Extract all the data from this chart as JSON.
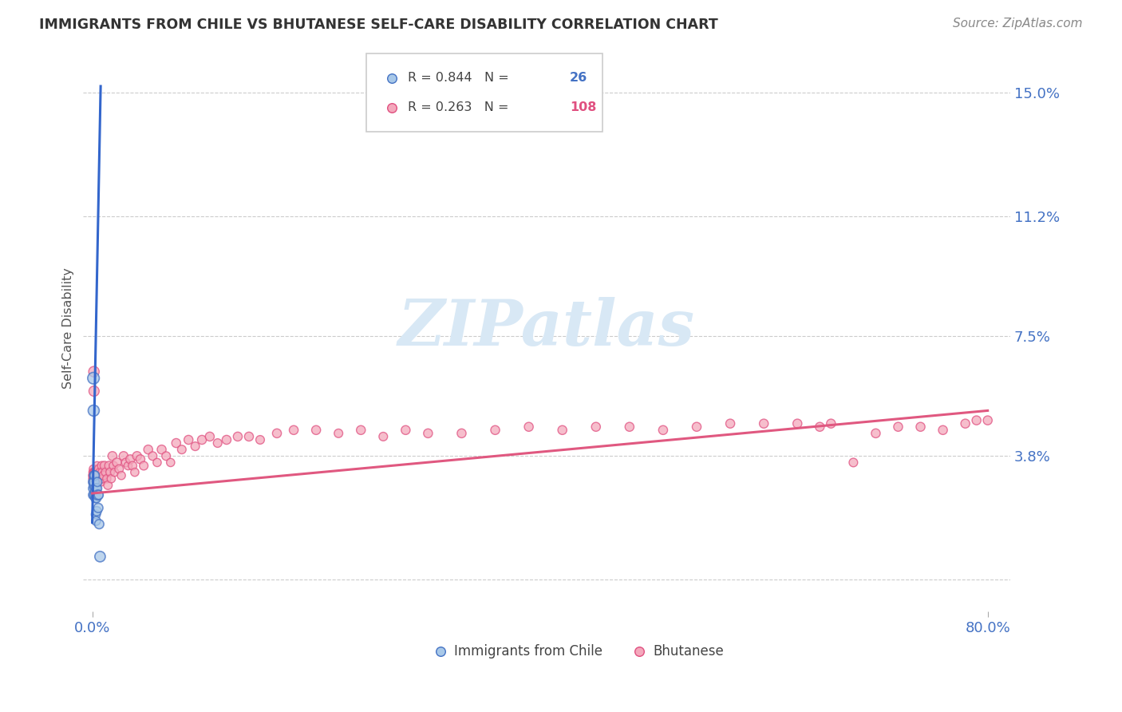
{
  "title": "IMMIGRANTS FROM CHILE VS BHUTANESE SELF-CARE DISABILITY CORRELATION CHART",
  "source": "Source: ZipAtlas.com",
  "ylabel": "Self-Care Disability",
  "legend_label_blue": "Immigrants from Chile",
  "legend_label_pink": "Bhutanese",
  "blue_R": 0.844,
  "blue_N": 26,
  "pink_R": 0.263,
  "pink_N": 108,
  "xlim": [
    -0.008,
    0.82
  ],
  "ylim": [
    -0.01,
    0.165
  ],
  "ytick_vals": [
    0.0,
    0.038,
    0.075,
    0.112,
    0.15
  ],
  "ytick_labels": [
    "",
    "3.8%",
    "7.5%",
    "11.2%",
    "15.0%"
  ],
  "xtick_vals": [
    0.0,
    0.8
  ],
  "xtick_labels": [
    "0.0%",
    "80.0%"
  ],
  "blue_face": "#a8c8e8",
  "blue_edge": "#4472c4",
  "pink_face": "#f4a8bc",
  "pink_edge": "#e05080",
  "blue_line": "#3366cc",
  "pink_line": "#e05880",
  "axis_label_color": "#4472c4",
  "title_color": "#333333",
  "source_color": "#888888",
  "ylabel_color": "#555555",
  "grid_color": "#cccccc",
  "watermark_color": "#d8e8f5",
  "legend_n_color_blue": "#4472c4",
  "legend_n_color_pink": "#e05080",
  "blue_x": [
    0.0005,
    0.0008,
    0.001,
    0.0011,
    0.0013,
    0.0015,
    0.0016,
    0.0018,
    0.002,
    0.0022,
    0.0024,
    0.0026,
    0.0028,
    0.003,
    0.0032,
    0.0034,
    0.0036,
    0.0038,
    0.004,
    0.0043,
    0.0046,
    0.005,
    0.0054,
    0.0058,
    0.0062,
    0.007
  ],
  "blue_y": [
    0.028,
    0.026,
    0.03,
    0.062,
    0.052,
    0.029,
    0.032,
    0.03,
    0.026,
    0.032,
    0.028,
    0.027,
    0.025,
    0.026,
    0.02,
    0.018,
    0.028,
    0.025,
    0.021,
    0.028,
    0.03,
    0.026,
    0.022,
    0.026,
    0.017,
    0.007
  ],
  "blue_sizes": [
    60,
    70,
    80,
    110,
    100,
    70,
    70,
    80,
    80,
    70,
    70,
    65,
    65,
    70,
    65,
    65,
    70,
    65,
    70,
    70,
    65,
    80,
    70,
    65,
    70,
    90
  ],
  "pink_x": [
    0.0005,
    0.0006,
    0.0007,
    0.0008,
    0.0009,
    0.001,
    0.0011,
    0.0012,
    0.0013,
    0.0014,
    0.0015,
    0.0016,
    0.0017,
    0.0018,
    0.0019,
    0.002,
    0.0022,
    0.0024,
    0.0026,
    0.0028,
    0.003,
    0.0032,
    0.0034,
    0.0036,
    0.0038,
    0.004,
    0.0043,
    0.0046,
    0.005,
    0.0054,
    0.0058,
    0.0062,
    0.0066,
    0.007,
    0.0075,
    0.008,
    0.0085,
    0.009,
    0.0095,
    0.01,
    0.011,
    0.012,
    0.013,
    0.014,
    0.015,
    0.016,
    0.017,
    0.018,
    0.019,
    0.02,
    0.022,
    0.024,
    0.026,
    0.028,
    0.03,
    0.032,
    0.034,
    0.036,
    0.038,
    0.04,
    0.043,
    0.046,
    0.05,
    0.054,
    0.058,
    0.062,
    0.066,
    0.07,
    0.075,
    0.08,
    0.086,
    0.092,
    0.098,
    0.105,
    0.112,
    0.12,
    0.13,
    0.14,
    0.15,
    0.165,
    0.18,
    0.2,
    0.22,
    0.24,
    0.26,
    0.28,
    0.3,
    0.33,
    0.36,
    0.39,
    0.42,
    0.45,
    0.48,
    0.51,
    0.54,
    0.57,
    0.6,
    0.63,
    0.65,
    0.66,
    0.68,
    0.7,
    0.72,
    0.74,
    0.76,
    0.78,
    0.79,
    0.8
  ],
  "pink_y": [
    0.032,
    0.031,
    0.03,
    0.033,
    0.032,
    0.034,
    0.031,
    0.032,
    0.031,
    0.033,
    0.064,
    0.058,
    0.031,
    0.032,
    0.033,
    0.03,
    0.031,
    0.032,
    0.033,
    0.03,
    0.031,
    0.032,
    0.033,
    0.031,
    0.03,
    0.033,
    0.035,
    0.032,
    0.031,
    0.03,
    0.034,
    0.032,
    0.031,
    0.033,
    0.031,
    0.03,
    0.035,
    0.033,
    0.031,
    0.032,
    0.035,
    0.033,
    0.031,
    0.029,
    0.035,
    0.033,
    0.031,
    0.038,
    0.035,
    0.033,
    0.036,
    0.034,
    0.032,
    0.038,
    0.036,
    0.035,
    0.037,
    0.035,
    0.033,
    0.038,
    0.037,
    0.035,
    0.04,
    0.038,
    0.036,
    0.04,
    0.038,
    0.036,
    0.042,
    0.04,
    0.043,
    0.041,
    0.043,
    0.044,
    0.042,
    0.043,
    0.044,
    0.044,
    0.043,
    0.045,
    0.046,
    0.046,
    0.045,
    0.046,
    0.044,
    0.046,
    0.045,
    0.045,
    0.046,
    0.047,
    0.046,
    0.047,
    0.047,
    0.046,
    0.047,
    0.048,
    0.048,
    0.048,
    0.047,
    0.048,
    0.036,
    0.045,
    0.047,
    0.047,
    0.046,
    0.048,
    0.049,
    0.049
  ],
  "pink_sizes": [
    60,
    60,
    55,
    60,
    60,
    55,
    60,
    60,
    55,
    60,
    90,
    85,
    60,
    60,
    55,
    60,
    60,
    55,
    60,
    60,
    55,
    60,
    60,
    55,
    60,
    60,
    55,
    60,
    60,
    55,
    60,
    60,
    55,
    60,
    60,
    55,
    60,
    60,
    55,
    60,
    65,
    60,
    55,
    60,
    65,
    60,
    55,
    65,
    60,
    55,
    65,
    60,
    55,
    65,
    60,
    55,
    65,
    60,
    55,
    65,
    65,
    60,
    65,
    60,
    55,
    65,
    60,
    55,
    65,
    60,
    65,
    60,
    65,
    65,
    60,
    65,
    65,
    65,
    60,
    65,
    65,
    65,
    60,
    65,
    60,
    65,
    65,
    65,
    65,
    65,
    65,
    65,
    65,
    65,
    65,
    65,
    65,
    65,
    65,
    65,
    60,
    65,
    65,
    65,
    65,
    65,
    65,
    65
  ],
  "blue_trend_x": [
    0.0,
    0.0075
  ],
  "blue_trend_y": [
    0.0175,
    0.152
  ],
  "pink_trend_x": [
    0.0,
    0.8
  ],
  "pink_trend_y": [
    0.0265,
    0.052
  ]
}
